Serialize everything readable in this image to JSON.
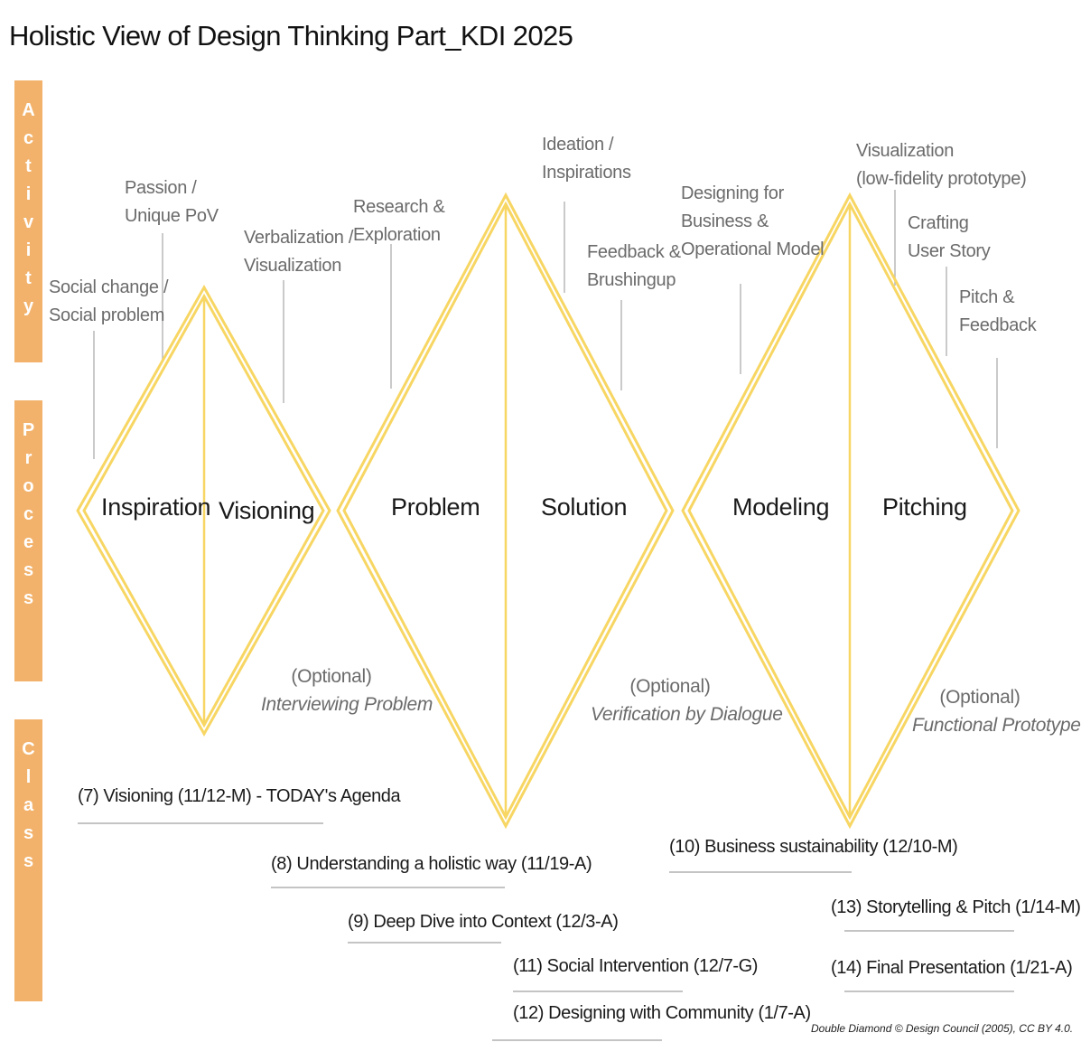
{
  "title": "Holistic View of Design Thinking Part_KDI 2025",
  "colors": {
    "band": "#f2b26b",
    "diamond": "#f7d663",
    "guide_line": "#b8b8b8",
    "label_gray": "#6b6b6b",
    "text_dark": "#1a1a1a"
  },
  "bands": [
    {
      "label": "Activity"
    },
    {
      "label": "Process"
    },
    {
      "label": "Class"
    }
  ],
  "activities": [
    {
      "lines": [
        "Social change /",
        "Social problem"
      ]
    },
    {
      "lines": [
        "Passion /",
        "Unique PoV"
      ]
    },
    {
      "lines": [
        "Verbalization /",
        "Visualization"
      ]
    },
    {
      "lines": [
        "Research &",
        "Exploration"
      ]
    },
    {
      "lines": [
        "Ideation /",
        "Inspirations"
      ]
    },
    {
      "lines": [
        "Feedback &",
        "Brushingup"
      ]
    },
    {
      "lines": [
        "Designing for",
        "Business &",
        "Operational Model"
      ]
    },
    {
      "lines": [
        "Visualization",
        "(low-fidelity prototype)"
      ]
    },
    {
      "lines": [
        "Crafting",
        "User Story"
      ]
    },
    {
      "lines": [
        "Pitch &",
        "Feedback"
      ]
    }
  ],
  "process": [
    {
      "label": "Inspiration"
    },
    {
      "label": "Visioning"
    },
    {
      "label": "Problem"
    },
    {
      "label": "Solution"
    },
    {
      "label": "Modeling"
    },
    {
      "label": "Pitching"
    }
  ],
  "optional": [
    {
      "prefix": "(Optional)",
      "text": "Interviewing Problem"
    },
    {
      "prefix": "(Optional)",
      "text": "Verification by Dialogue"
    },
    {
      "prefix": "(Optional)",
      "text": "Functional Prototype"
    }
  ],
  "classes": [
    {
      "label": "(7) Visioning (11/12-M) - TODAY's Agenda"
    },
    {
      "label": "(8) Understanding a holistic way (11/19-A)"
    },
    {
      "label": "(9) Deep Dive into Context (12/3-A)"
    },
    {
      "label": "(11) Social Intervention (12/7-G)"
    },
    {
      "label": "(12) Designing with Community (1/7-A)"
    },
    {
      "label": "(10) Business sustainability (12/10-M)"
    },
    {
      "label": "(13) Storytelling & Pitch (1/14-M)"
    },
    {
      "label": "(14) Final Presentation (1/21-A)"
    }
  ],
  "credit": "Double Diamond © Design Council (2005), CC BY 4.0."
}
